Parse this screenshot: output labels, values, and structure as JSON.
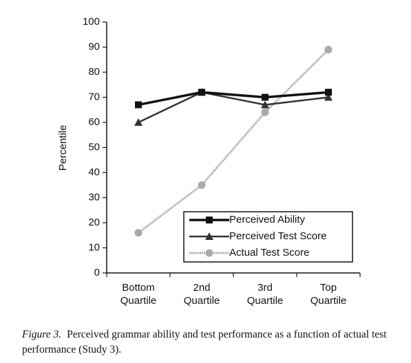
{
  "chart_data": {
    "type": "line",
    "ylabel": "Percentile",
    "categories": [
      "Bottom Quartile",
      "2nd Quartile",
      "3rd Quartile",
      "Top Quartile"
    ],
    "series": [
      {
        "name": "Perceived Ability",
        "color": "#111111",
        "marker": "square",
        "values": [
          67,
          72,
          70,
          72
        ]
      },
      {
        "name": "Perceived Test Score",
        "color": "#333333",
        "marker": "triangle",
        "values": [
          60,
          72,
          67,
          70
        ]
      },
      {
        "name": "Actual Test Score",
        "color": "#aaaaaa",
        "marker": "circle",
        "values": [
          16,
          35,
          64,
          89
        ]
      }
    ],
    "ylim": [
      0,
      100
    ],
    "yticks": [
      0,
      10,
      20,
      30,
      40,
      50,
      60,
      70,
      80,
      90,
      100
    ],
    "grid": false,
    "legend": "lower right"
  },
  "caption": {
    "label": "Figure 3.",
    "text": "Perceived grammar ability and test performance as a function of actual test performance (Study 3)."
  }
}
